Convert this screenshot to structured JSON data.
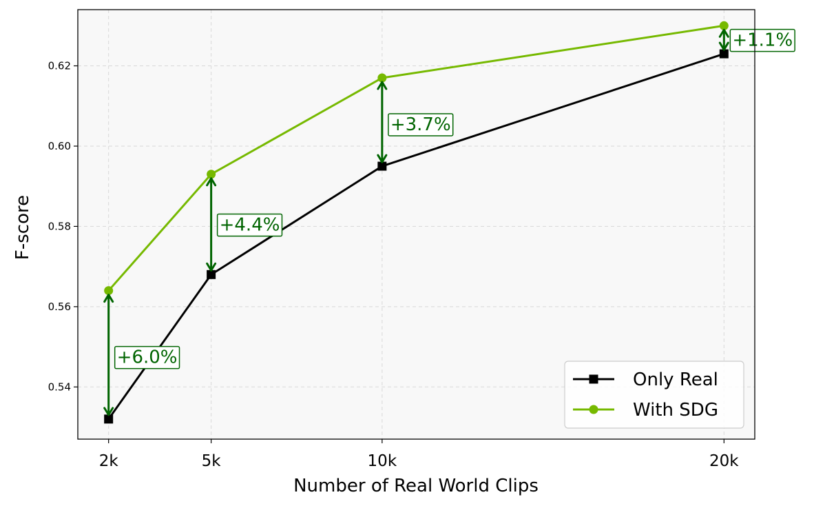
{
  "chart_data": {
    "type": "line",
    "x": [
      2000,
      5000,
      10000,
      20000
    ],
    "xticks": [
      "2k",
      "5k",
      "10k",
      "20k"
    ],
    "xlabel": "Number of Real World Clips",
    "ylabel": "F-score",
    "xlim": [
      1100,
      20900
    ],
    "ylim": [
      0.527,
      0.634
    ],
    "yticks": [
      0.54,
      0.56,
      0.58,
      0.6,
      0.62
    ],
    "ytick_labels": [
      "0.54",
      "0.56",
      "0.58",
      "0.60",
      "0.62"
    ],
    "grid": true,
    "legend_position": "bottom-right",
    "series": [
      {
        "name": "Only Real",
        "values": [
          0.532,
          0.568,
          0.595,
          0.623
        ],
        "color": "#000000",
        "marker": "square"
      },
      {
        "name": "With SDG",
        "values": [
          0.564,
          0.593,
          0.617,
          0.63
        ],
        "color": "#76b900",
        "marker": "circle"
      }
    ],
    "annotations": [
      {
        "text": "+6.0%",
        "x": 2000,
        "y_low": 0.532,
        "y_high": 0.564,
        "label_y": 0.5475
      },
      {
        "text": "+4.4%",
        "x": 5000,
        "y_low": 0.568,
        "y_high": 0.593,
        "label_y": 0.5805
      },
      {
        "text": "+3.7%",
        "x": 10000,
        "y_low": 0.595,
        "y_high": 0.617,
        "label_y": 0.6055
      },
      {
        "text": "+1.1%",
        "x": 20000,
        "y_low": 0.623,
        "y_high": 0.63,
        "label_y": 0.6265
      }
    ],
    "annotation_color": "#006400"
  }
}
